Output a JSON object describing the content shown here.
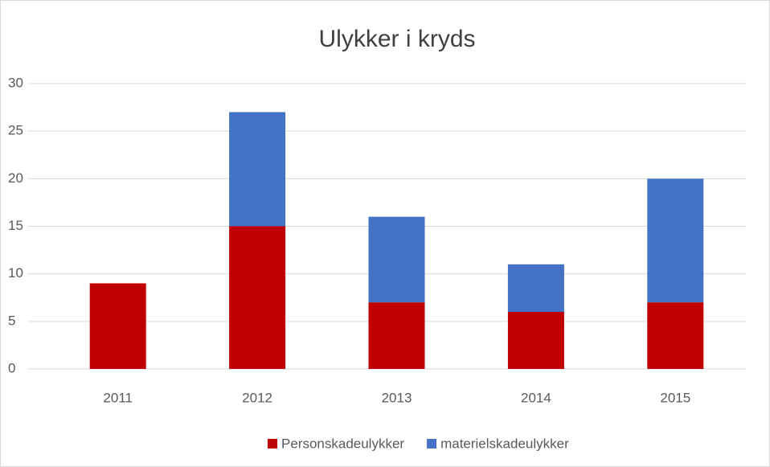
{
  "chart_data": {
    "type": "stacked_bar",
    "title": "Ulykker i kryds",
    "categories": [
      "2011",
      "2012",
      "2013",
      "2014",
      "2015"
    ],
    "series": [
      {
        "name": "Personskadeulykker",
        "color": "#c00000",
        "values": [
          9,
          15,
          7,
          6,
          7
        ]
      },
      {
        "name": "materielskadeulykker",
        "color": "#4472c4",
        "values": [
          0,
          12,
          9,
          5,
          13
        ]
      }
    ],
    "ylim": [
      0,
      30
    ],
    "yticks": [
      0,
      5,
      10,
      15,
      20,
      25,
      30
    ],
    "grid": true,
    "legend": "bottom"
  }
}
